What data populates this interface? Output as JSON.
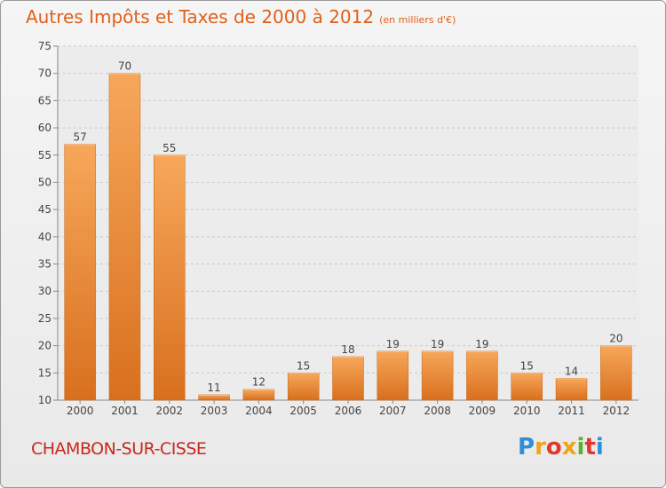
{
  "title": {
    "main": "Autres Impôts et Taxes de 2000 à 2012",
    "unit": "(en milliers d'€)"
  },
  "location": "CHAMBON-SUR-CISSE",
  "logo": {
    "text": "Proxiti",
    "mark": "Pro x iti"
  },
  "colors": {
    "title": "#e0601a",
    "location": "#c8281e",
    "bar_light": "#f7a75a",
    "bar_dark": "#d8701e"
  },
  "chart_data": {
    "type": "bar",
    "categories": [
      "2000",
      "2001",
      "2002",
      "2003",
      "2004",
      "2005",
      "2006",
      "2007",
      "2008",
      "2009",
      "2010",
      "2011",
      "2012"
    ],
    "values": [
      57,
      70,
      55,
      11,
      12,
      15,
      18,
      19,
      19,
      19,
      15,
      14,
      20
    ],
    "title": "Autres Impôts et Taxes de 2000 à 2012",
    "subtitle": "(en milliers d'€)",
    "ylim": [
      10,
      75
    ],
    "yticks": [
      10,
      15,
      20,
      25,
      30,
      35,
      40,
      45,
      50,
      55,
      60,
      65,
      70,
      75
    ],
    "grid": true,
    "data_labels": true
  }
}
